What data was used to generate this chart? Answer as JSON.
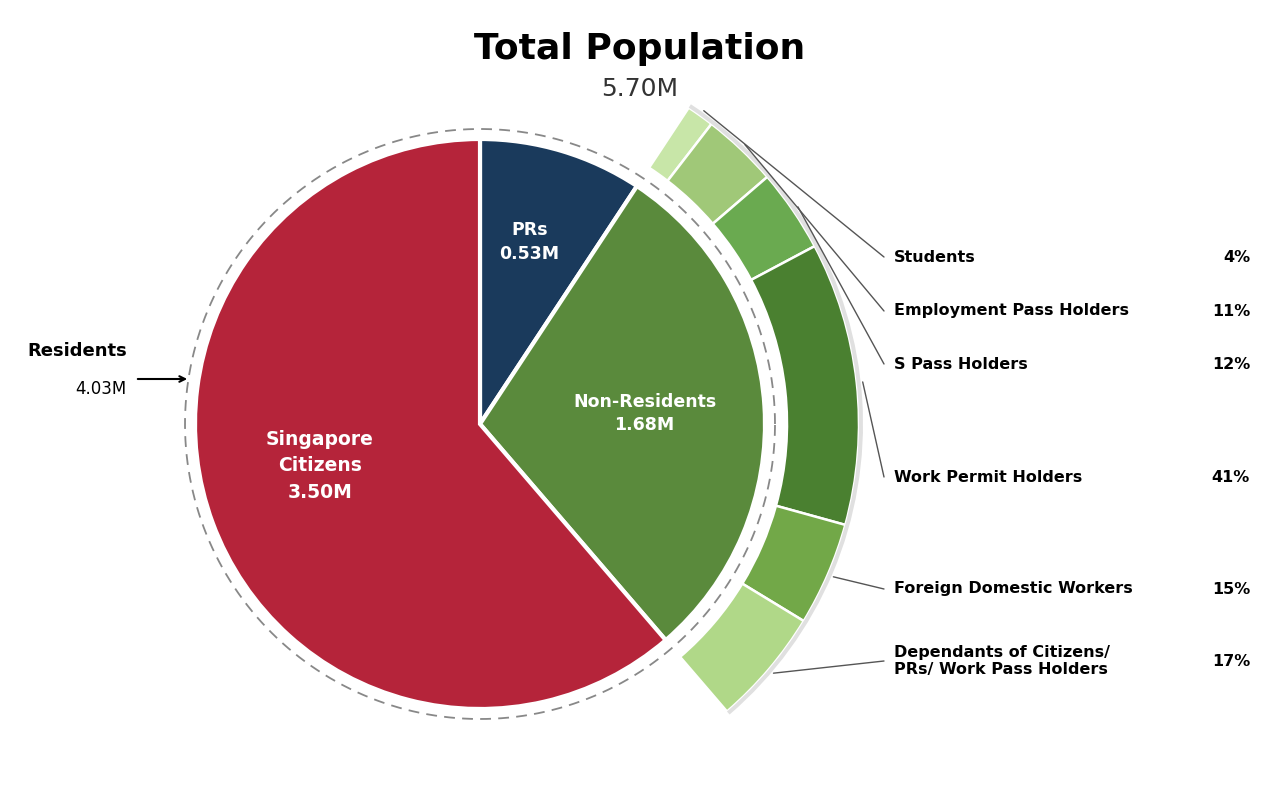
{
  "title": "Total Population",
  "subtitle": "5.70M",
  "bg_color": "#ffffff",
  "pie_segments": [
    {
      "label": "Singapore\nCitizens\n3.50M",
      "value": 3.5,
      "color": "#b5243a"
    },
    {
      "label": "PRs\n0.53M",
      "value": 0.53,
      "color": "#1a3a5c"
    },
    {
      "label": "Non-Residents\n1.68M",
      "value": 1.68,
      "color": "#5a8a3c"
    }
  ],
  "sub_segments": [
    {
      "label": "Students",
      "pct": 4,
      "color": "#c8e6a8"
    },
    {
      "label": "Employment Pass Holders",
      "pct": 11,
      "color": "#a0c878"
    },
    {
      "label": "S Pass Holders",
      "pct": 12,
      "color": "#6aaa50"
    },
    {
      "label": "Work Permit Holders",
      "pct": 41,
      "color": "#4a8030"
    },
    {
      "label": "Foreign Domestic Workers",
      "pct": 15,
      "color": "#72a848"
    },
    {
      "label": "Dependants of Citizens/\nPRs/ Work Pass Holders",
      "pct": 17,
      "color": "#b0d888"
    }
  ],
  "residents_label": "Residents",
  "residents_value": "4.03M"
}
